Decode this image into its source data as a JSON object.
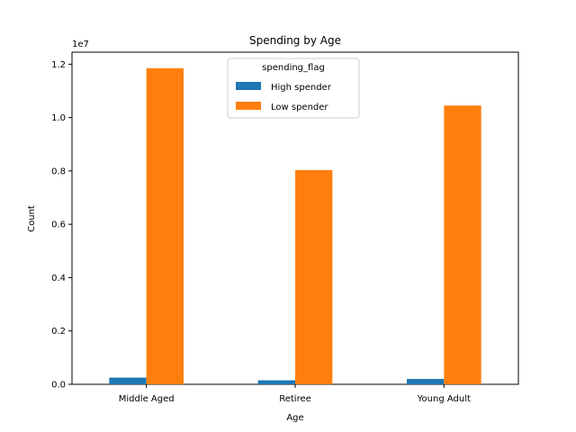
{
  "chart_data": {
    "type": "bar",
    "title": "Spending by Age",
    "xlabel": "Age",
    "ylabel": "Count",
    "y_offset_label": "1e7",
    "categories": [
      "Middle Aged",
      "Retiree",
      "Young Adult"
    ],
    "series": [
      {
        "name": "High spender",
        "color": "#1f77b4",
        "values": [
          250000,
          150000,
          200000
        ]
      },
      {
        "name": "Low spender",
        "color": "#ff7f0e",
        "values": [
          11850000,
          8030000,
          10450000
        ]
      }
    ],
    "ylim": [
      0,
      12450000
    ],
    "yticks": [
      0,
      2000000,
      4000000,
      6000000,
      8000000,
      10000000,
      12000000
    ],
    "ytick_labels": [
      "0.0",
      "0.2",
      "0.4",
      "0.6",
      "0.8",
      "1.0",
      "1.2"
    ],
    "legend": {
      "title": "spending_flag",
      "position": "upper center"
    },
    "grid": false
  }
}
